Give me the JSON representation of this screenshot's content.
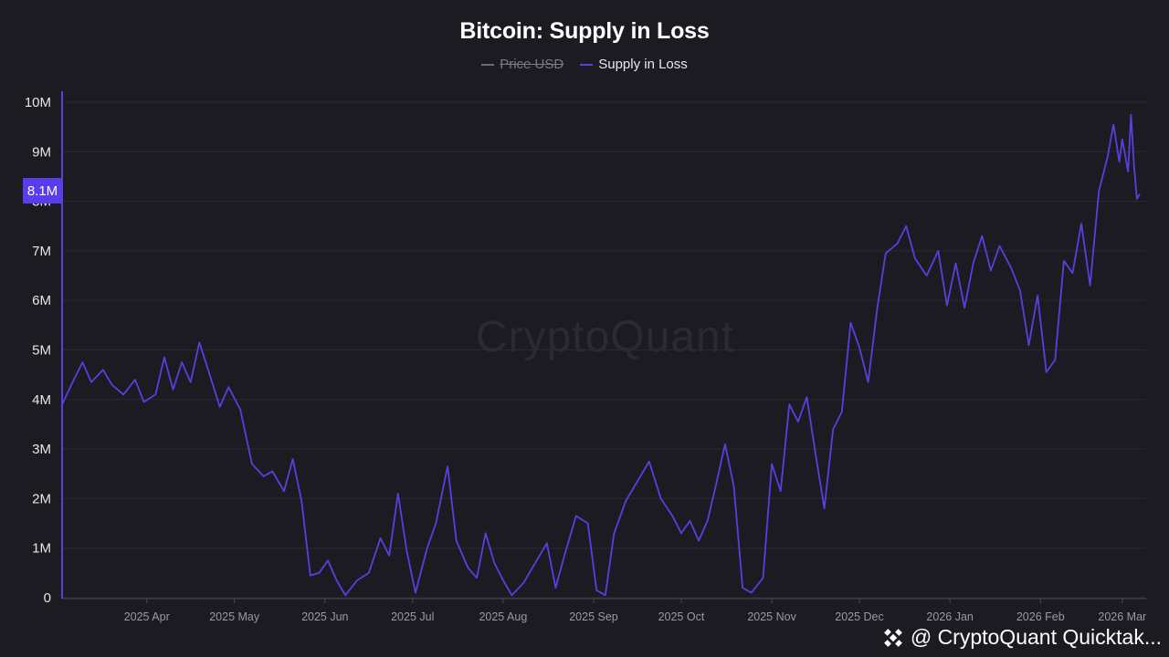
{
  "chart_data": {
    "type": "line",
    "title": "Bitcoin: Supply in Loss",
    "legend": [
      {
        "name": "Price USD",
        "hidden": true,
        "color": "#6d6c76"
      },
      {
        "name": "Supply in Loss",
        "hidden": false,
        "color": "#5b3ee0"
      }
    ],
    "y_ticks": [
      "10M",
      "9M",
      "8M",
      "7M",
      "6M",
      "5M",
      "4M",
      "3M",
      "2M",
      "1M",
      "0"
    ],
    "ylim": [
      0,
      10.2
    ],
    "y_unit": "M",
    "x_ticks": [
      "2025 Apr",
      "2025 May",
      "2025 Jun",
      "2025 Jul",
      "2025 Aug",
      "2025 Sep",
      "2025 Oct",
      "2025 Nov",
      "2025 Dec",
      "2026 Jan",
      "2026 Feb",
      "2026 Mar"
    ],
    "x_start": "2025-03-03",
    "x_end": "2026-03-07",
    "series": [
      {
        "name": "Supply in Loss",
        "color": "#5b3ee0",
        "points": [
          [
            "2025-03-03",
            3.9
          ],
          [
            "2025-03-07",
            4.4
          ],
          [
            "2025-03-10",
            4.75
          ],
          [
            "2025-03-13",
            4.35
          ],
          [
            "2025-03-17",
            4.6
          ],
          [
            "2025-03-20",
            4.3
          ],
          [
            "2025-03-24",
            4.1
          ],
          [
            "2025-03-28",
            4.4
          ],
          [
            "2025-03-31",
            3.95
          ],
          [
            "2025-04-04",
            4.1
          ],
          [
            "2025-04-07",
            4.85
          ],
          [
            "2025-04-10",
            4.2
          ],
          [
            "2025-04-13",
            4.75
          ],
          [
            "2025-04-16",
            4.35
          ],
          [
            "2025-04-19",
            5.15
          ],
          [
            "2025-04-22",
            4.6
          ],
          [
            "2025-04-26",
            3.85
          ],
          [
            "2025-04-29",
            4.25
          ],
          [
            "2025-05-03",
            3.8
          ],
          [
            "2025-05-07",
            2.7
          ],
          [
            "2025-05-11",
            2.45
          ],
          [
            "2025-05-14",
            2.55
          ],
          [
            "2025-05-18",
            2.15
          ],
          [
            "2025-05-21",
            2.8
          ],
          [
            "2025-05-24",
            1.95
          ],
          [
            "2025-05-27",
            0.45
          ],
          [
            "2025-05-30",
            0.5
          ],
          [
            "2025-06-02",
            0.75
          ],
          [
            "2025-06-05",
            0.35
          ],
          [
            "2025-06-08",
            0.05
          ],
          [
            "2025-06-12",
            0.35
          ],
          [
            "2025-06-16",
            0.5
          ],
          [
            "2025-06-20",
            1.2
          ],
          [
            "2025-06-23",
            0.85
          ],
          [
            "2025-06-26",
            2.1
          ],
          [
            "2025-06-29",
            0.95
          ],
          [
            "2025-07-02",
            0.1
          ],
          [
            "2025-07-06",
            1.0
          ],
          [
            "2025-07-09",
            1.5
          ],
          [
            "2025-07-13",
            2.65
          ],
          [
            "2025-07-16",
            1.15
          ],
          [
            "2025-07-20",
            0.6
          ],
          [
            "2025-07-23",
            0.4
          ],
          [
            "2025-07-26",
            1.3
          ],
          [
            "2025-07-29",
            0.7
          ],
          [
            "2025-08-01",
            0.35
          ],
          [
            "2025-08-04",
            0.05
          ],
          [
            "2025-08-08",
            0.3
          ],
          [
            "2025-08-12",
            0.7
          ],
          [
            "2025-08-16",
            1.1
          ],
          [
            "2025-08-19",
            0.2
          ],
          [
            "2025-08-22",
            0.85
          ],
          [
            "2025-08-26",
            1.65
          ],
          [
            "2025-08-30",
            1.5
          ],
          [
            "2025-09-02",
            0.15
          ],
          [
            "2025-09-05",
            0.05
          ],
          [
            "2025-09-08",
            1.3
          ],
          [
            "2025-09-12",
            1.95
          ],
          [
            "2025-09-16",
            2.35
          ],
          [
            "2025-09-20",
            2.75
          ],
          [
            "2025-09-24",
            2.0
          ],
          [
            "2025-09-28",
            1.65
          ],
          [
            "2025-10-01",
            1.3
          ],
          [
            "2025-10-04",
            1.55
          ],
          [
            "2025-10-07",
            1.15
          ],
          [
            "2025-10-10",
            1.55
          ],
          [
            "2025-10-13",
            2.3
          ],
          [
            "2025-10-16",
            3.1
          ],
          [
            "2025-10-19",
            2.25
          ],
          [
            "2025-10-22",
            0.2
          ],
          [
            "2025-10-25",
            0.1
          ],
          [
            "2025-10-29",
            0.4
          ],
          [
            "2025-11-01",
            2.7
          ],
          [
            "2025-11-04",
            2.15
          ],
          [
            "2025-11-07",
            3.9
          ],
          [
            "2025-11-10",
            3.55
          ],
          [
            "2025-11-13",
            4.05
          ],
          [
            "2025-11-16",
            2.9
          ],
          [
            "2025-11-19",
            1.8
          ],
          [
            "2025-11-22",
            3.4
          ],
          [
            "2025-11-25",
            3.75
          ],
          [
            "2025-11-28",
            5.55
          ],
          [
            "2025-12-01",
            5.05
          ],
          [
            "2025-12-04",
            4.35
          ],
          [
            "2025-12-07",
            5.8
          ],
          [
            "2025-12-10",
            6.95
          ],
          [
            "2025-12-14",
            7.15
          ],
          [
            "2025-12-17",
            7.5
          ],
          [
            "2025-12-20",
            6.85
          ],
          [
            "2025-12-24",
            6.5
          ],
          [
            "2025-12-28",
            7.0
          ],
          [
            "2025-12-31",
            5.9
          ],
          [
            "2026-01-03",
            6.75
          ],
          [
            "2026-01-06",
            5.85
          ],
          [
            "2026-01-09",
            6.75
          ],
          [
            "2026-01-12",
            7.3
          ],
          [
            "2026-01-15",
            6.6
          ],
          [
            "2026-01-18",
            7.1
          ],
          [
            "2026-01-22",
            6.65
          ],
          [
            "2026-01-25",
            6.2
          ],
          [
            "2026-01-28",
            5.1
          ],
          [
            "2026-01-31",
            6.1
          ],
          [
            "2026-02-03",
            4.55
          ],
          [
            "2026-02-06",
            4.8
          ],
          [
            "2026-02-09",
            6.8
          ],
          [
            "2026-02-12",
            6.55
          ],
          [
            "2026-02-15",
            7.55
          ],
          [
            "2026-02-18",
            6.3
          ],
          [
            "2026-02-21",
            8.2
          ],
          [
            "2026-02-24",
            8.9
          ],
          [
            "2026-02-26",
            9.55
          ],
          [
            "2026-02-28",
            8.8
          ],
          [
            "2026-03-01",
            9.25
          ],
          [
            "2026-03-03",
            8.6
          ],
          [
            "2026-03-04",
            9.75
          ],
          [
            "2026-03-05",
            8.75
          ],
          [
            "2026-03-06",
            8.05
          ],
          [
            "2026-03-07",
            8.15
          ]
        ]
      }
    ],
    "current_value_label": "8.1M",
    "watermark": "CryptoQuant",
    "attribution": "@ CryptoQuant Quicktak..."
  }
}
